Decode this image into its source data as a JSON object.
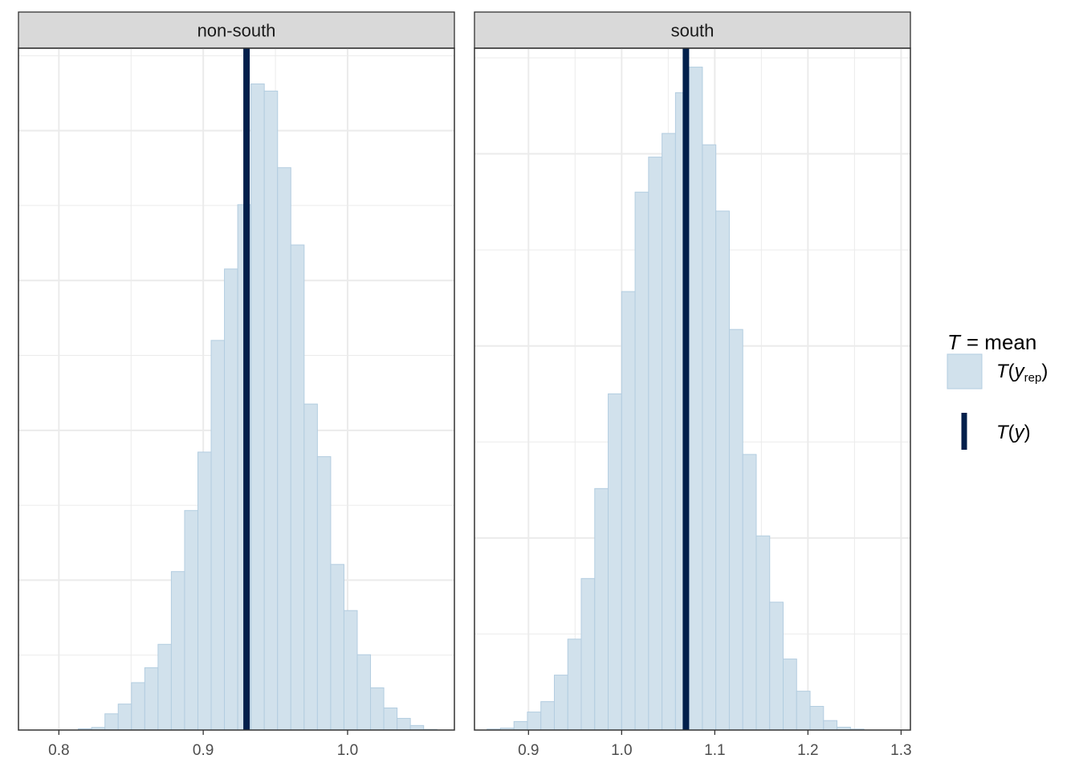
{
  "colors": {
    "bar_fill": "#d1e1ec",
    "bar_stroke": "#b3cde0",
    "stat_line": "#011f4b",
    "strip_bg": "#d9d9d9",
    "grid": "#ebebeb",
    "panel_border": "#333333"
  },
  "legend": {
    "title_T": "T",
    "title_rest": "= mean",
    "rep_T": "T",
    "rep_paren_open": "(",
    "rep_y": "y",
    "rep_sub": "rep",
    "rep_paren_close": ")",
    "obs_T": "T",
    "obs_paren_open": "(",
    "obs_y": "y",
    "obs_paren_close": ")"
  },
  "chart_data": [
    {
      "type": "bar",
      "facet": "non-south",
      "observed": 0.93,
      "xlim": [
        0.772,
        1.074
      ],
      "ylim": [
        0,
        105
      ],
      "grid": true,
      "x_ticks": [
        0.8,
        0.9,
        1.0
      ],
      "x_tick_labels": [
        "0.8",
        "0.9",
        "1.0"
      ],
      "bin_start": 0.8135,
      "bin_width": 0.0092,
      "counts": [
        0.2,
        0.4,
        2.5,
        4.0,
        7.3,
        9.6,
        13.2,
        24.4,
        33.8,
        42.8,
        60.0,
        71.0,
        80.9,
        99.5,
        98.4,
        86.6,
        74.7,
        50.2,
        42.1,
        25.5,
        18.4,
        11.6,
        6.5,
        3.4,
        1.8,
        0.7,
        0.1
      ]
    },
    {
      "type": "bar",
      "facet": "south",
      "observed": 1.069,
      "xlim": [
        0.842,
        1.31
      ],
      "ylim": [
        0,
        72
      ],
      "grid": true,
      "x_ticks": [
        0.9,
        1.0,
        1.1,
        1.2,
        1.3
      ],
      "x_tick_labels": [
        "0.9",
        "1.0",
        "1.1",
        "1.2",
        "1.3"
      ],
      "bin_start": 0.8555,
      "bin_width": 0.01445,
      "counts": [
        0.1,
        0.2,
        0.9,
        1.9,
        3.0,
        5.8,
        9.6,
        16.0,
        25.5,
        35.5,
        46.3,
        56.8,
        60.5,
        63.0,
        67.3,
        70.0,
        61.8,
        54.8,
        42.3,
        29.1,
        20.5,
        13.5,
        7.5,
        4.1,
        2.5,
        1.0,
        0.3,
        0.1
      ]
    }
  ]
}
